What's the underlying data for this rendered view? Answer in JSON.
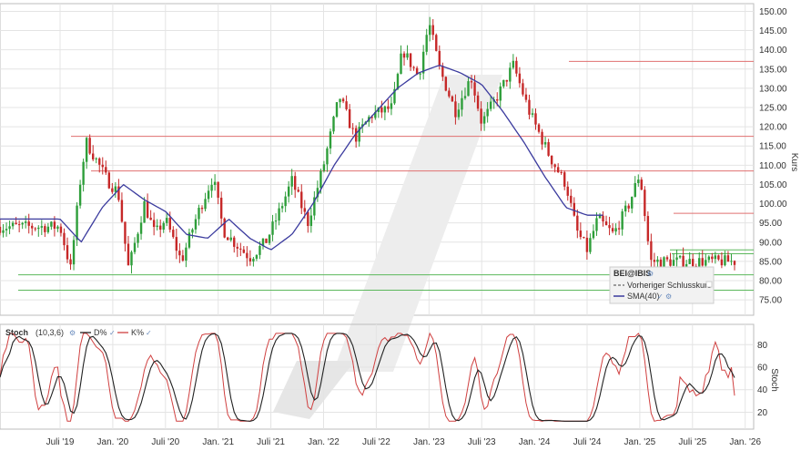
{
  "chart_data": {
    "type": "candlestick",
    "colors": {
      "up": "#2e9e3a",
      "down": "#c62828",
      "sma": "#3b3b9e",
      "resistance": "#e07070",
      "support": "#5cb85c",
      "d_line": "#222222",
      "k_line": "#d04040"
    },
    "x_ticks": [
      "Juli '19",
      "Jan. '20",
      "Juli '20",
      "Jan. '21",
      "Juli '21",
      "Jan. '22",
      "Juli '22",
      "Jan. '23",
      "Juli '23",
      "Jan. '24",
      "Juli '24",
      "Jan. '25",
      "Juli '25",
      "Jan. '26"
    ],
    "price_panel": {
      "ylabel": "Kurs",
      "ylim": [
        71,
        152
      ],
      "y_ticks": [
        "150.00",
        "145.00",
        "140.00",
        "135.00",
        "130.00",
        "125.00",
        "120.00",
        "115.00",
        "110.00",
        "105.00",
        "100.00",
        "95.00",
        "90.00",
        "85.00",
        "80.00",
        "75.00"
      ],
      "grid": true,
      "legend": {
        "placement": "bottom-right",
        "symbol": "BEI@IBIS",
        "entries": [
          {
            "label": "Vorheriger Schlusskurs",
            "style": "dashed"
          },
          {
            "label": "SMA(40)",
            "style": "solid"
          }
        ]
      },
      "resistance_lines": [
        137,
        117.5,
        108.5,
        97.5
      ],
      "support_lines": [
        88,
        87,
        81.5,
        77.5
      ],
      "price_path": {
        "t": [
          0.0,
          0.2,
          0.4,
          0.5,
          0.9,
          1.1,
          1.3,
          1.6,
          1.8,
          2.0,
          2.3,
          2.6,
          2.9,
          3.1,
          3.3,
          3.6,
          3.9,
          4.1,
          4.4,
          4.7,
          5.0,
          5.3,
          5.6,
          5.9,
          6.3,
          6.5,
          6.8,
          7.0,
          7.2,
          7.5,
          7.8,
          8.0,
          8.3,
          8.6,
          8.9,
          9.1,
          9.3,
          9.6,
          9.8,
          10.0,
          10.2,
          10.5,
          10.8,
          11.0,
          11.2,
          11.4,
          11.6,
          11.9,
          12.1,
          12.3,
          12.6,
          12.8,
          13.0,
          13.2
        ],
        "close": [
          94,
          83,
          108,
          116,
          106,
          103,
          83,
          100,
          92,
          96,
          85,
          97,
          107,
          93,
          90,
          86,
          90,
          96,
          106,
          95,
          110,
          128,
          117,
          123,
          125,
          140,
          133,
          147,
          135,
          124,
          133,
          121,
          128,
          136,
          124,
          118,
          112,
          105,
          93,
          88,
          96,
          92,
          100,
          108,
          85,
          85,
          85,
          85,
          85,
          85,
          85,
          85,
          85,
          85
        ]
      },
      "sma_path": {
        "t": [
          0.0,
          0.4,
          0.8,
          1.2,
          1.6,
          2.0,
          2.4,
          2.8,
          3.2,
          3.6,
          4.0,
          4.4,
          4.8,
          5.2,
          5.6,
          6.0,
          6.4,
          6.8,
          7.2,
          7.6,
          8.0,
          8.4,
          8.8,
          9.2,
          9.6,
          10.0,
          10.2,
          10.3
        ],
        "value": [
          96,
          90,
          99,
          105,
          101,
          98,
          92,
          91,
          96,
          91,
          88,
          92,
          100,
          110,
          118,
          124,
          130,
          134,
          136,
          134,
          131,
          124,
          116,
          107,
          99,
          97,
          97,
          97
        ]
      }
    },
    "stoch_panel": {
      "label": "Stoch",
      "params": "(10,3,6)",
      "series": [
        {
          "name": "D%"
        },
        {
          "name": "K%"
        }
      ],
      "ylabel": "Stoch",
      "ylim": [
        5,
        98
      ],
      "y_ticks": [
        "80",
        "60",
        "40",
        "20"
      ]
    }
  }
}
